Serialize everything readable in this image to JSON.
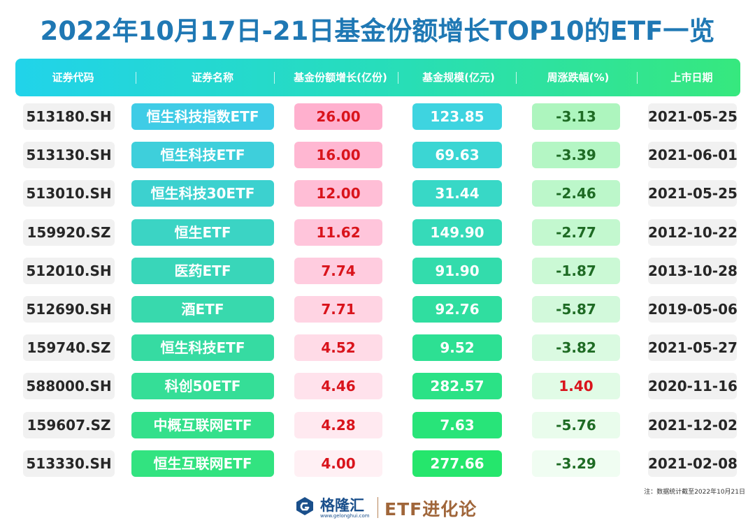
{
  "title": "2022年10月17日-21日基金份额增长TOP10的ETF一览",
  "headers": [
    "证券代码",
    "证券名称",
    "基金份额增长(亿份)",
    "基金规模(亿元)",
    "周涨跌幅(%)",
    "上市日期"
  ],
  "rows": [
    {
      "code": "513180.SH",
      "name": "恒生科技指数ETF",
      "growth": "26.00",
      "scale": "123.85",
      "change": "-3.13",
      "date": "2021-05-25"
    },
    {
      "code": "513130.SH",
      "name": "恒生科技ETF",
      "growth": "16.00",
      "scale": "69.63",
      "change": "-3.39",
      "date": "2021-06-01"
    },
    {
      "code": "513010.SH",
      "name": "恒生科技30ETF",
      "growth": "12.00",
      "scale": "31.44",
      "change": "-2.46",
      "date": "2021-05-25"
    },
    {
      "code": "159920.SZ",
      "name": "恒生ETF",
      "growth": "11.62",
      "scale": "149.90",
      "change": "-2.77",
      "date": "2012-10-22"
    },
    {
      "code": "512010.SH",
      "name": "医药ETF",
      "growth": "7.74",
      "scale": "91.90",
      "change": "-1.87",
      "date": "2013-10-28"
    },
    {
      "code": "512690.SH",
      "name": "酒ETF",
      "growth": "7.71",
      "scale": "92.76",
      "change": "-5.87",
      "date": "2019-05-06"
    },
    {
      "code": "159740.SZ",
      "name": "恒生科技ETF",
      "growth": "4.52",
      "scale": "9.52",
      "change": "-3.82",
      "date": "2021-05-27"
    },
    {
      "code": "588000.SH",
      "name": "科创50ETF",
      "growth": "4.46",
      "scale": "282.57",
      "change": "1.40",
      "date": "2020-11-16"
    },
    {
      "code": "159607.SZ",
      "name": "中概互联网ETF",
      "growth": "4.28",
      "scale": "7.63",
      "change": "-5.76",
      "date": "2021-12-02"
    },
    {
      "code": "513330.SH",
      "name": "恒生互联网ETF",
      "growth": "4.00",
      "scale": "277.66",
      "change": "-3.29",
      "date": "2021-02-08"
    }
  ],
  "colors": {
    "title": "#1f78b4",
    "positive": "#d9141c",
    "negative": "#1e6b24"
  },
  "note": "注：数据统计截至2022年10月21日",
  "footer": {
    "logo_icon": "gelonghui-logo-icon",
    "brand": "格隆汇",
    "site": "www.gelonghui.com",
    "etf_brand": "ETF进化论"
  }
}
